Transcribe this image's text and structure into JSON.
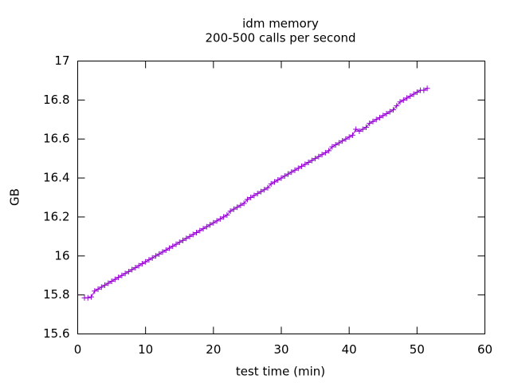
{
  "chart_data": {
    "type": "line",
    "title": "idm memory",
    "subtitle": "200-500 calls per second",
    "x_label": "test time (min)",
    "y_label": "GB",
    "xlim": [
      0,
      60
    ],
    "xticks": [
      0,
      10,
      20,
      30,
      40,
      50,
      60
    ],
    "ylim": [
      15.6,
      17
    ],
    "yticks": [
      15.6,
      15.8,
      16,
      16.2,
      16.4,
      16.6,
      16.8,
      17
    ],
    "grid": false,
    "x": [
      1.0,
      1.5,
      2.0,
      2.5,
      3.0,
      3.5,
      4.0,
      4.5,
      5.0,
      5.5,
      6.0,
      6.5,
      7.0,
      7.5,
      8.0,
      8.5,
      9.0,
      9.5,
      10.0,
      10.5,
      11.0,
      11.5,
      12.0,
      12.5,
      13.0,
      13.5,
      14.0,
      14.5,
      15.0,
      15.5,
      16.0,
      16.5,
      17.0,
      17.5,
      18.0,
      18.5,
      19.0,
      19.5,
      20.0,
      20.5,
      21.0,
      21.5,
      22.0,
      22.5,
      23.0,
      23.5,
      24.0,
      24.5,
      25.0,
      25.5,
      26.0,
      26.5,
      27.0,
      27.5,
      28.0,
      28.5,
      29.0,
      29.5,
      30.0,
      30.5,
      31.0,
      31.5,
      32.0,
      32.5,
      33.0,
      33.5,
      34.0,
      34.5,
      35.0,
      35.5,
      36.0,
      36.5,
      37.0,
      37.5,
      38.0,
      38.5,
      39.0,
      39.5,
      40.0,
      40.5,
      41.0,
      41.5,
      42.0,
      42.5,
      43.0,
      43.5,
      44.0,
      44.5,
      45.0,
      45.5,
      46.0,
      46.5,
      47.0,
      47.5,
      48.0,
      48.5,
      49.0,
      49.5,
      50.0,
      50.5,
      51.0,
      51.5
    ],
    "series": [
      {
        "color": "#9400d3",
        "values": [
          15.785,
          15.785,
          15.79,
          15.82,
          15.83,
          15.84,
          15.85,
          15.86,
          15.87,
          15.88,
          15.89,
          15.9,
          15.91,
          15.92,
          15.93,
          15.94,
          15.95,
          15.96,
          15.97,
          15.98,
          15.99,
          16.0,
          16.01,
          16.02,
          16.03,
          16.04,
          16.05,
          16.06,
          16.07,
          16.08,
          16.09,
          16.1,
          16.11,
          16.12,
          16.13,
          16.14,
          16.15,
          16.16,
          16.17,
          16.18,
          16.19,
          16.2,
          16.21,
          16.23,
          16.24,
          16.25,
          16.26,
          16.27,
          16.29,
          16.3,
          16.31,
          16.32,
          16.33,
          16.34,
          16.35,
          16.37,
          16.38,
          16.39,
          16.4,
          16.41,
          16.42,
          16.43,
          16.44,
          16.45,
          16.46,
          16.47,
          16.48,
          16.49,
          16.5,
          16.51,
          16.52,
          16.53,
          16.54,
          16.56,
          16.57,
          16.58,
          16.59,
          16.6,
          16.61,
          16.62,
          16.65,
          16.64,
          16.65,
          16.66,
          16.68,
          16.69,
          16.7,
          16.71,
          16.72,
          16.73,
          16.74,
          16.75,
          16.77,
          16.79,
          16.8,
          16.81,
          16.82,
          16.83,
          16.84,
          16.85,
          16.85,
          16.86
        ]
      }
    ]
  }
}
